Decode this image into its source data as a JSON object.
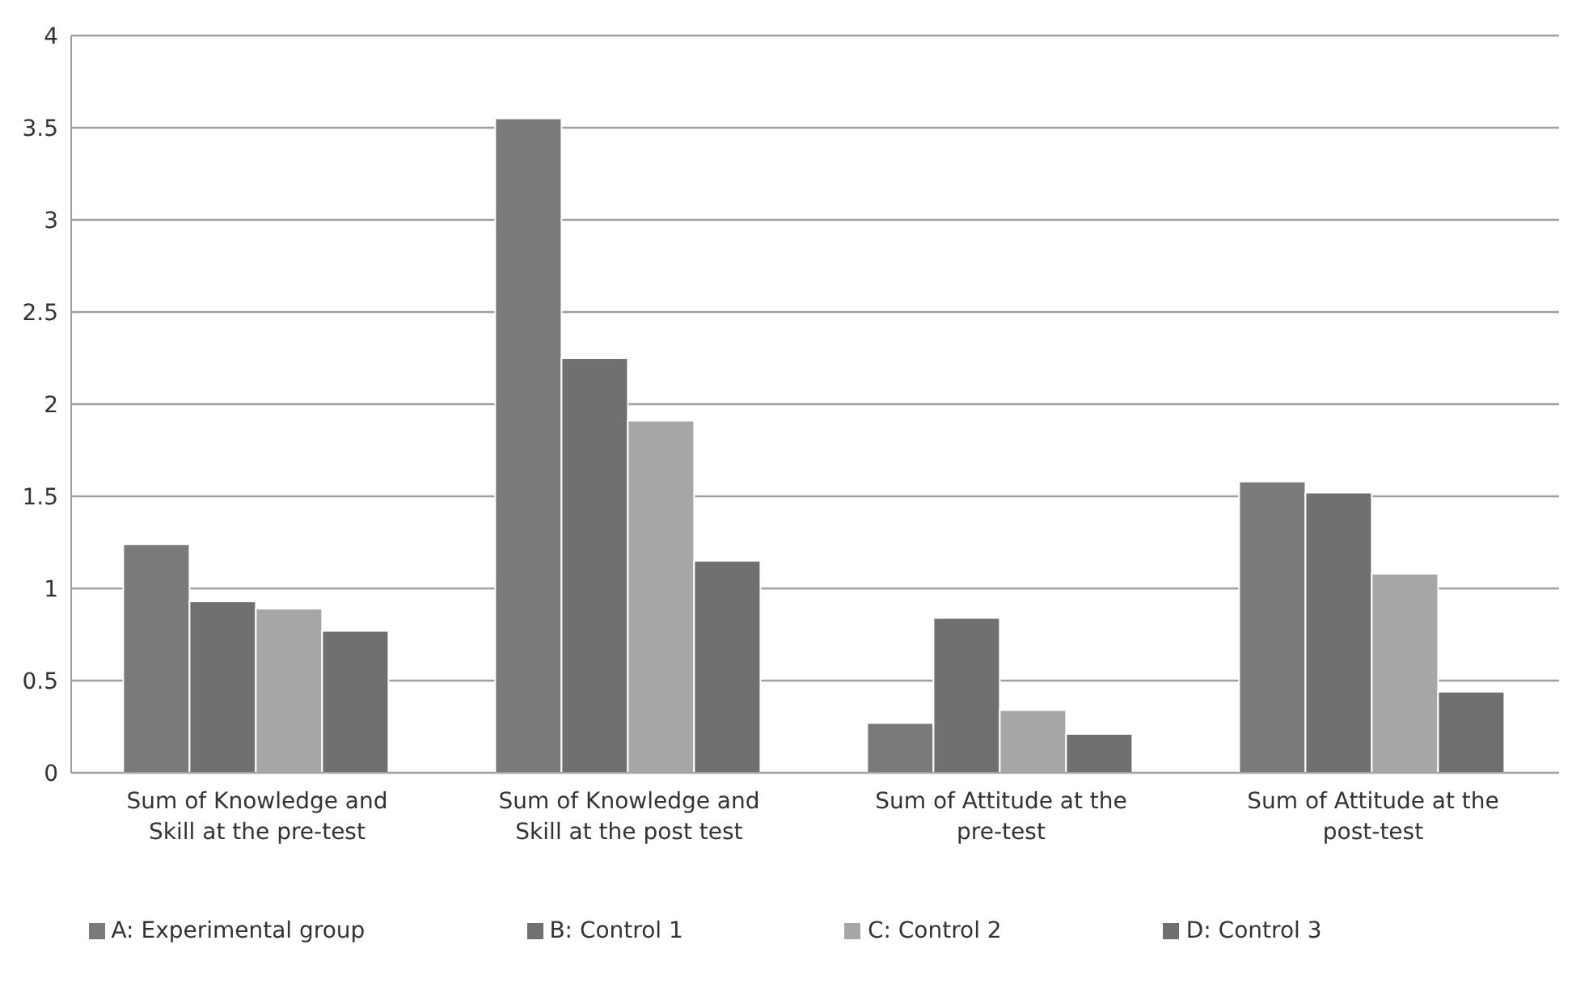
{
  "chart_data": {
    "type": "bar",
    "categories": [
      "Sum of Knowledge and Skill at the pre-test",
      "Sum of Knowledge and Skill at the post test",
      "Sum of Attitude at the pre-test",
      "Sum of Attitude at the post-test"
    ],
    "series": [
      {
        "name": "A:  Experimental group",
        "color": "#7a7a7a",
        "values": [
          1.24,
          3.55,
          0.27,
          1.58
        ]
      },
      {
        "name": "B:  Control 1",
        "color": "#707070",
        "values": [
          0.93,
          2.25,
          0.84,
          1.52
        ]
      },
      {
        "name": "C:  Control 2",
        "color": "#a6a6a6",
        "values": [
          0.89,
          1.91,
          0.34,
          1.08
        ]
      },
      {
        "name": "D:  Control 3",
        "color": "#707070",
        "values": [
          0.77,
          1.15,
          0.21,
          0.44
        ]
      }
    ],
    "ylim": [
      0,
      4
    ],
    "yticks": [
      0,
      0.5,
      1,
      1.5,
      2,
      2.5,
      3,
      3.5,
      4
    ],
    "grid": "y",
    "legend": "bottom"
  }
}
